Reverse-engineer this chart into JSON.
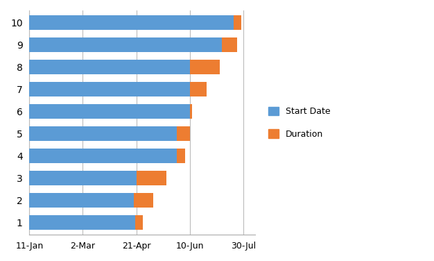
{
  "tasks": [
    1,
    2,
    3,
    4,
    5,
    6,
    7,
    8,
    9,
    10
  ],
  "blue_days": [
    99,
    98,
    100,
    138,
    138,
    150,
    150,
    150,
    180,
    191
  ],
  "orange_days": [
    7,
    18,
    28,
    8,
    12,
    2,
    16,
    28,
    14,
    7
  ],
  "bar_color_blue": "#5B9BD5",
  "bar_color_orange": "#ED7D31",
  "bg_color": "#FFFFFF",
  "legend_start": "Start Date",
  "legend_duration": "Duration",
  "x_tick_labels": [
    "11-Jan",
    "2-Mar",
    "21-Apr",
    "10-Jun",
    "30-Jul"
  ],
  "x_tick_days": [
    0,
    50,
    100,
    150,
    200
  ],
  "xlim": [
    0,
    211
  ],
  "ylim": [
    0.45,
    10.55
  ],
  "bar_height": 0.65,
  "figsize": [
    6.26,
    3.76
  ],
  "dpi": 100
}
